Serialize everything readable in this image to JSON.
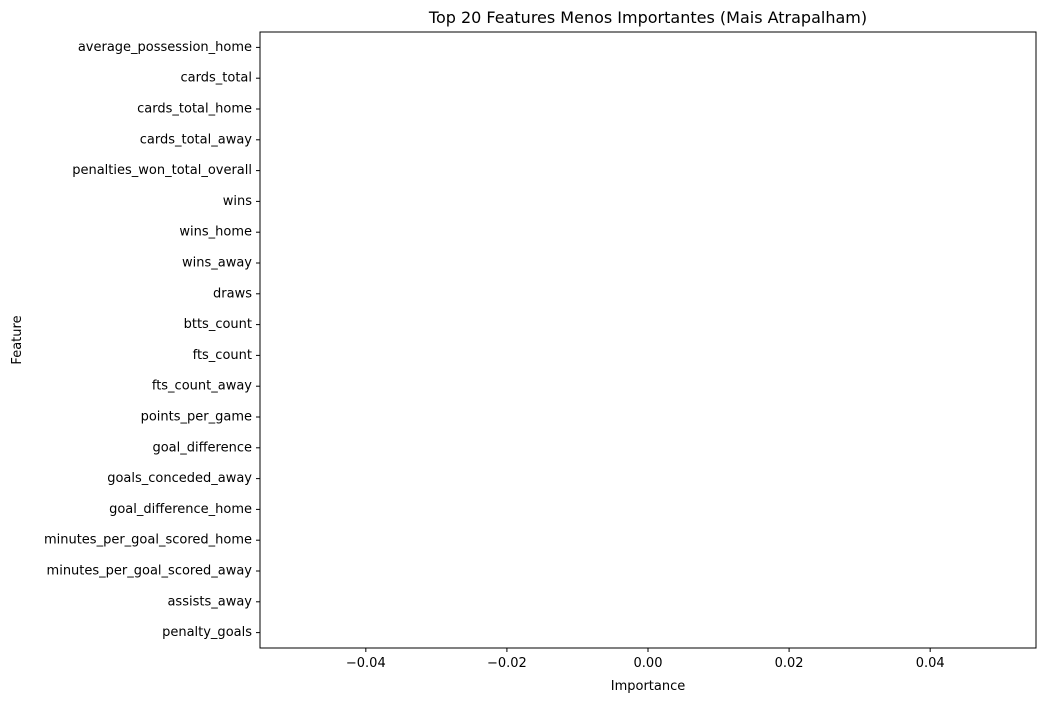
{
  "chart_data": {
    "type": "bar",
    "orientation": "horizontal",
    "title": "Top 20 Features Menos Importantes (Mais Atrapalham)",
    "xlabel": "Importance",
    "ylabel": "Feature",
    "categories": [
      "average_possession_home",
      "cards_total",
      "cards_total_home",
      "cards_total_away",
      "penalties_won_total_overall",
      "wins",
      "wins_home",
      "wins_away",
      "draws",
      "btts_count",
      "fts_count",
      "fts_count_away",
      "points_per_game",
      "goal_difference",
      "goals_conceded_away",
      "goal_difference_home",
      "minutes_per_goal_scored_home",
      "minutes_per_goal_scored_away",
      "assists_away",
      "penalty_goals"
    ],
    "values": [
      0,
      0,
      0,
      0,
      0,
      0,
      0,
      0,
      0,
      0,
      0,
      0,
      0,
      0,
      0,
      0,
      0,
      0,
      0,
      0
    ],
    "xlim": [
      -0.055,
      0.055
    ],
    "xticks": [
      -0.04,
      -0.02,
      0.0,
      0.02,
      0.04
    ],
    "xtick_labels": [
      "−0.04",
      "−0.02",
      "0.00",
      "0.02",
      "0.04"
    ],
    "grid": false,
    "legend": "none",
    "bar_color": "#1f77b4"
  }
}
